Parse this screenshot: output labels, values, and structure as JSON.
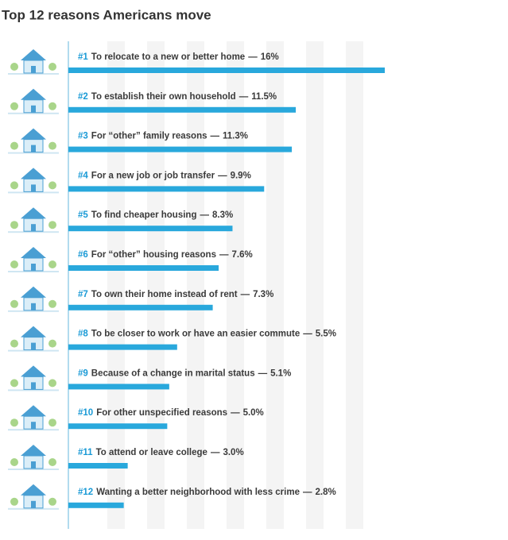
{
  "chart_data": {
    "type": "bar",
    "orientation": "horizontal",
    "title": "Top 12 reasons Americans move",
    "ranks": [
      "#1",
      "#2",
      "#3",
      "#4",
      "#5",
      "#6",
      "#7",
      "#8",
      "#9",
      "#10",
      "#11",
      "#12"
    ],
    "categories": [
      "To relocate to a new or better home",
      "To establish their own household",
      "For “other” family reasons",
      "For a new job or job transfer",
      "To find cheaper housing",
      "For “other” housing reasons",
      "To own their home instead of rent",
      "To be closer to work or have an easier commute",
      "Because of a change in marital status",
      "For other unspecified reasons",
      "To attend or leave college",
      "Wanting a better neighborhood with less crime"
    ],
    "separator": "—",
    "values": [
      16,
      11.5,
      11.3,
      9.9,
      8.3,
      7.6,
      7.3,
      5.5,
      5.1,
      5.0,
      3.0,
      2.8
    ],
    "value_labels": [
      "16%",
      "11.5%",
      "11.3%",
      "9.9%",
      "8.3%",
      "7.6%",
      "7.3%",
      "5.5%",
      "5.1%",
      "5.0%",
      "3.0%",
      "2.8%"
    ],
    "xlim": [
      0,
      16
    ],
    "color": "#29a8dc",
    "rank_color": "#1a9ad6"
  }
}
